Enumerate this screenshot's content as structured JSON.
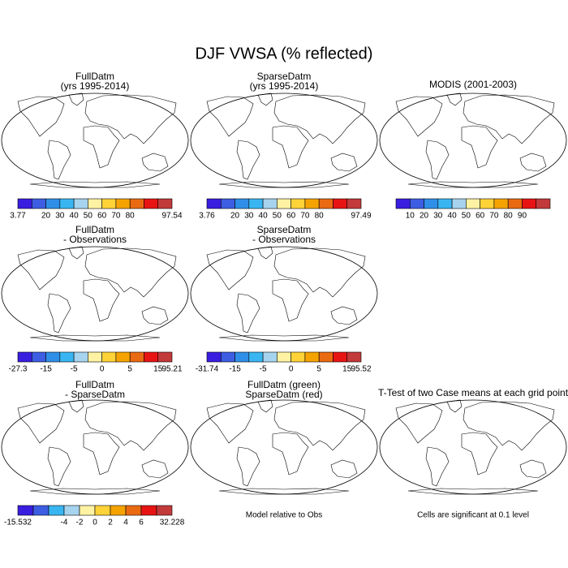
{
  "title": "DJF VWSA (% reflected)",
  "panels": [
    {
      "title": [
        "FullDatm",
        "(yrs 1995-2014)"
      ],
      "colorbar": {
        "colors": [
          "#3a1ee0",
          "#3d5ee2",
          "#2f8fe8",
          "#39b6f2",
          "#a6d3ee",
          "#fff3a3",
          "#ffd338",
          "#f5a300",
          "#ea6a12",
          "#e81414",
          "#c23a3a"
        ],
        "labels": [
          "3.77",
          null,
          "20",
          "30",
          "40",
          "50",
          "60",
          "70",
          "80",
          null,
          null,
          "97.54"
        ]
      }
    },
    {
      "title": [
        "SparseDatm",
        "(yrs 1995-2014)"
      ],
      "colorbar": {
        "colors": [
          "#3a1ee0",
          "#3d5ee2",
          "#2f8fe8",
          "#39b6f2",
          "#a6d3ee",
          "#fff3a3",
          "#ffd338",
          "#f5a300",
          "#ea6a12",
          "#e81414",
          "#c23a3a"
        ],
        "labels": [
          "3.76",
          null,
          "20",
          "30",
          "40",
          "50",
          "60",
          "70",
          "80",
          null,
          null,
          "97.49"
        ]
      }
    },
    {
      "title": [
        "MODIS (2001-2003)"
      ],
      "colorbar": {
        "colors": [
          "#3a1ee0",
          "#3d5ee2",
          "#2f8fe8",
          "#39b6f2",
          "#a6d3ee",
          "#fff3a3",
          "#ffd338",
          "#f5a300",
          "#ea6a12",
          "#e81414",
          "#c23a3a"
        ],
        "labels": [
          null,
          "10",
          "20",
          "30",
          "40",
          "50",
          "60",
          "70",
          "80",
          "90",
          null,
          null
        ]
      }
    },
    {
      "title": [
        "FullDatm",
        "- Observations"
      ],
      "colorbar": {
        "colors": [
          "#3a1ee0",
          "#3d5ee2",
          "#2f8fe8",
          "#39b6f2",
          "#a6d3ee",
          "#fff3a3",
          "#ffd338",
          "#f5a300",
          "#ea6a12",
          "#e81414",
          "#c23a3a"
        ],
        "labels": [
          "-27.3",
          null,
          "-15",
          null,
          "-5",
          null,
          "0",
          null,
          "5",
          null,
          "15",
          "95.21"
        ]
      }
    },
    {
      "title": [
        "SparseDatm",
        "- Observations"
      ],
      "colorbar": {
        "colors": [
          "#3a1ee0",
          "#3d5ee2",
          "#2f8fe8",
          "#39b6f2",
          "#a6d3ee",
          "#fff3a3",
          "#ffd338",
          "#f5a300",
          "#ea6a12",
          "#e81414",
          "#c23a3a"
        ],
        "labels": [
          "-31.74",
          null,
          "-15",
          null,
          "-5",
          null,
          "0",
          null,
          "5",
          null,
          "15",
          "95.52"
        ]
      }
    },
    {
      "title": [
        "FullDatm",
        "- SparseDatm"
      ],
      "colorbar": {
        "colors": [
          "#3a1ee0",
          "#3d5ee2",
          "#39b6f2",
          "#a6d3ee",
          "#fff3a3",
          "#ffd338",
          "#f5a300",
          "#ea6a12",
          "#e81414",
          "#c23a3a"
        ],
        "labels": [
          "-15.532",
          null,
          null,
          "-4",
          "-2",
          "0",
          "2",
          "4",
          "6",
          null,
          "32.228"
        ]
      }
    },
    {
      "title": [
        "FullDatm (green)",
        "SparseDatm (red)"
      ],
      "note": "Model relative to Obs"
    },
    {
      "title": [
        "T-Test of two Case means at each grid point"
      ],
      "note": "Cells are significant at 0.1 level"
    }
  ]
}
